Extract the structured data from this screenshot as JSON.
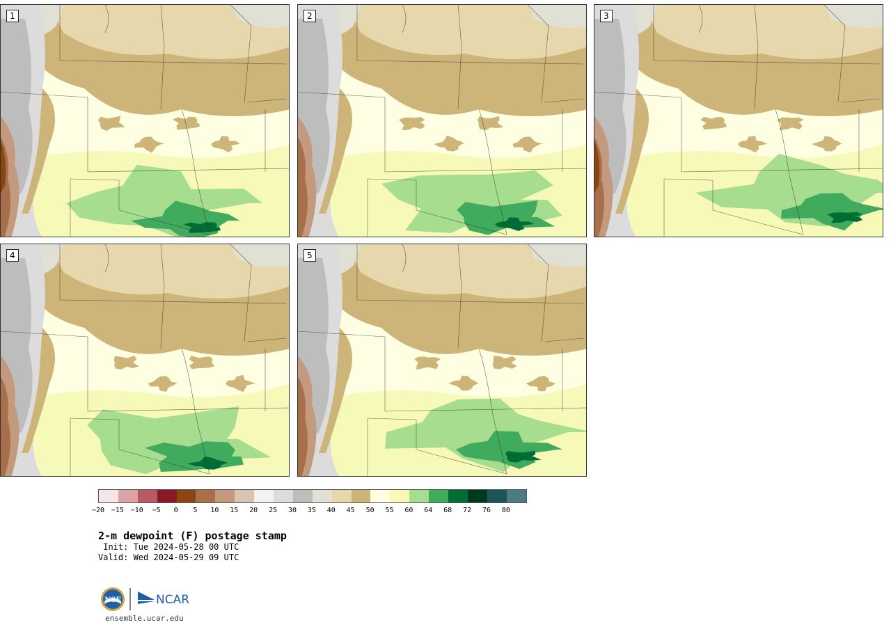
{
  "panels": [
    {
      "label": "1",
      "variant": 1
    },
    {
      "label": "2",
      "variant": 2
    },
    {
      "label": "3",
      "variant": 3
    },
    {
      "label": "4",
      "variant": 4
    },
    {
      "label": "5",
      "variant": 5
    }
  ],
  "legend": {
    "colors": [
      "#f7e6e8",
      "#d9a3a8",
      "#b75a61",
      "#8b1a24",
      "#8b4513",
      "#a8704a",
      "#c49a7e",
      "#dcc3b0",
      "#f2f2f2",
      "#dcdcdc",
      "#bdbdbd",
      "#e0e0d4",
      "#e6d7ac",
      "#cdb478",
      "#fefee2",
      "#f7f9b8",
      "#a6dd8f",
      "#41ab5d",
      "#006d35",
      "#00391e",
      "#1b5459",
      "#4f7a80"
    ],
    "ticks": [
      "-20",
      "-15",
      "-10",
      "-5",
      "0",
      "5",
      "10",
      "15",
      "20",
      "25",
      "30",
      "35",
      "40",
      "45",
      "50",
      "55",
      "60",
      "64",
      "68",
      "72",
      "76",
      "80"
    ]
  },
  "title": "2-m dewpoint (F) postage stamp",
  "init": " Init: Tue 2024-05-28 00 UTC",
  "valid": "Valid: Wed 2024-05-29 09 UTC",
  "logos": {
    "nsf": "NSF",
    "ncar": "NCAR"
  },
  "site": "ensemble.ucar.edu"
}
